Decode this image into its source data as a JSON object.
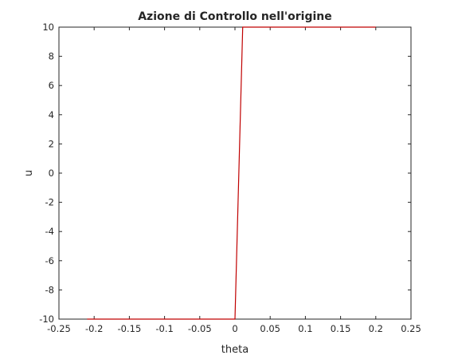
{
  "chart_data": {
    "type": "line",
    "title": "Azione di Controllo nell'origine",
    "xlabel": "theta",
    "ylabel": "u",
    "xlim": [
      -0.25,
      0.25
    ],
    "ylim": [
      -10,
      10
    ],
    "xticks": [
      -0.25,
      -0.2,
      -0.15,
      -0.1,
      -0.05,
      0,
      0.05,
      0.1,
      0.15,
      0.2,
      0.25
    ],
    "xtick_labels": [
      "-0.25",
      "-0.2",
      "-0.15",
      "-0.1",
      "-0.05",
      "0",
      "0.05",
      "0.1",
      "0.15",
      "0.2",
      "0.25"
    ],
    "yticks": [
      -10,
      -8,
      -6,
      -4,
      -2,
      0,
      2,
      4,
      6,
      8,
      10
    ],
    "ytick_labels": [
      "-10",
      "-8",
      "-6",
      "-4",
      "-2",
      "0",
      "2",
      "4",
      "6",
      "8",
      "10"
    ],
    "grid": false,
    "series": [
      {
        "color": "#c00000",
        "x": [
          -0.21,
          0.0,
          0.011,
          0.2
        ],
        "y": [
          -10,
          -10,
          10,
          10
        ]
      }
    ]
  }
}
